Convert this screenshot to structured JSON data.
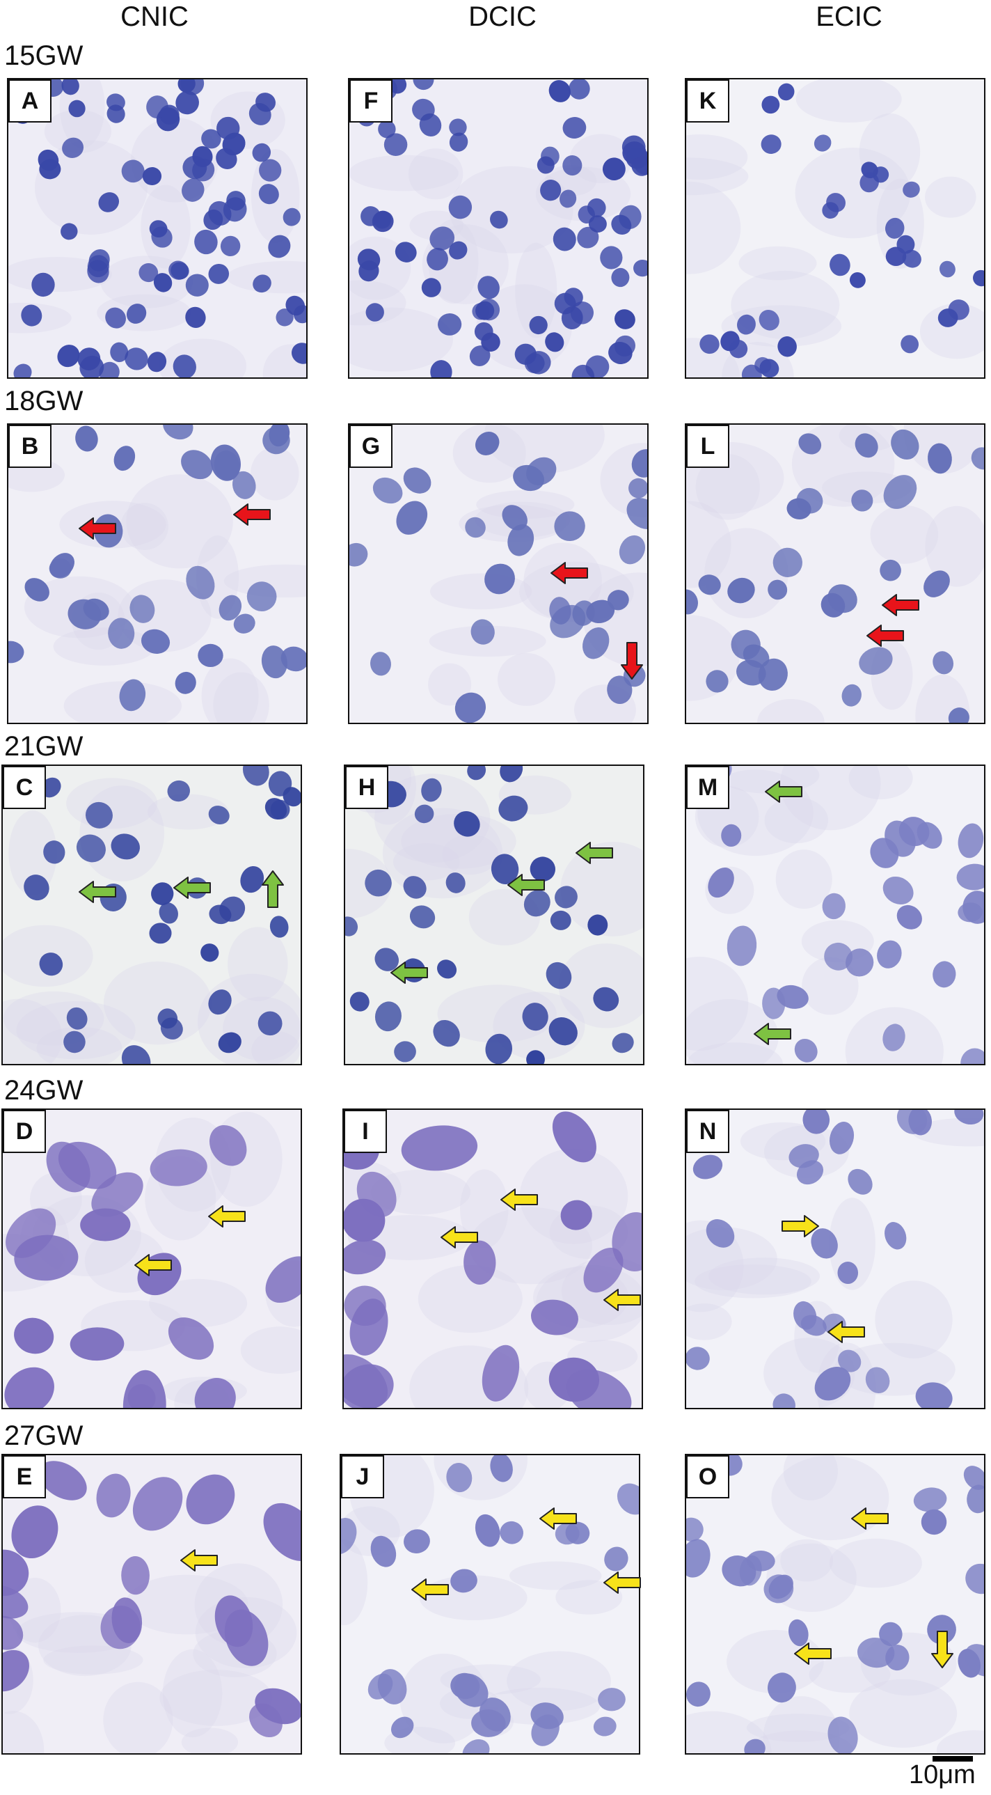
{
  "columns": [
    "CNIC",
    "DCIC",
    "ECIC"
  ],
  "rows": [
    "15GW",
    "18GW",
    "21GW",
    "24GW",
    "27GW"
  ],
  "panels": [
    {
      "letter": "A",
      "style": "dense"
    },
    {
      "letter": "F",
      "style": "dense"
    },
    {
      "letter": "K",
      "style": "sparse"
    },
    {
      "letter": "B",
      "style": "medium"
    },
    {
      "letter": "G",
      "style": "medium"
    },
    {
      "letter": "L",
      "style": "medium"
    },
    {
      "letter": "C",
      "style": "dark"
    },
    {
      "letter": "H",
      "style": "dark"
    },
    {
      "letter": "M",
      "style": "light"
    },
    {
      "letter": "D",
      "style": "large"
    },
    {
      "letter": "I",
      "style": "large"
    },
    {
      "letter": "N",
      "style": "light"
    },
    {
      "letter": "E",
      "style": "large"
    },
    {
      "letter": "J",
      "style": "light"
    },
    {
      "letter": "O",
      "style": "light"
    }
  ],
  "arrow_colors": {
    "red": "#e8141a",
    "green": "#7ec242",
    "yellow": "#f7e21a"
  },
  "scale_bar": "10μm"
}
